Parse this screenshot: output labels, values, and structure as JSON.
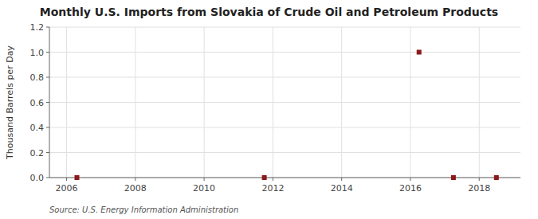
{
  "chart_data": {
    "type": "scatter",
    "title": "Monthly U.S. Imports from Slovakia of Crude Oil and Petroleum Products",
    "ylabel": "Thousand Barrels per Day",
    "source": "Source: U.S. Energy Information Administration",
    "x": [
      2006.3,
      2011.75,
      2016.25,
      2017.25,
      2018.5
    ],
    "values": [
      0.0,
      0.0,
      1.0,
      0.0,
      0.0
    ],
    "color": "#8b1a1a",
    "marker": "square",
    "xlim": [
      2005.5,
      2019.2
    ],
    "ylim": [
      0.0,
      1.2
    ],
    "xticks": [
      2006,
      2008,
      2010,
      2012,
      2014,
      2016,
      2018
    ],
    "yticks": [
      {
        "value": 0.0,
        "label": "0.0"
      },
      0.2,
      0.4,
      0.6,
      0.8,
      {
        "value": 1.0,
        "label": "1.0"
      },
      1.2
    ],
    "grid": true
  }
}
